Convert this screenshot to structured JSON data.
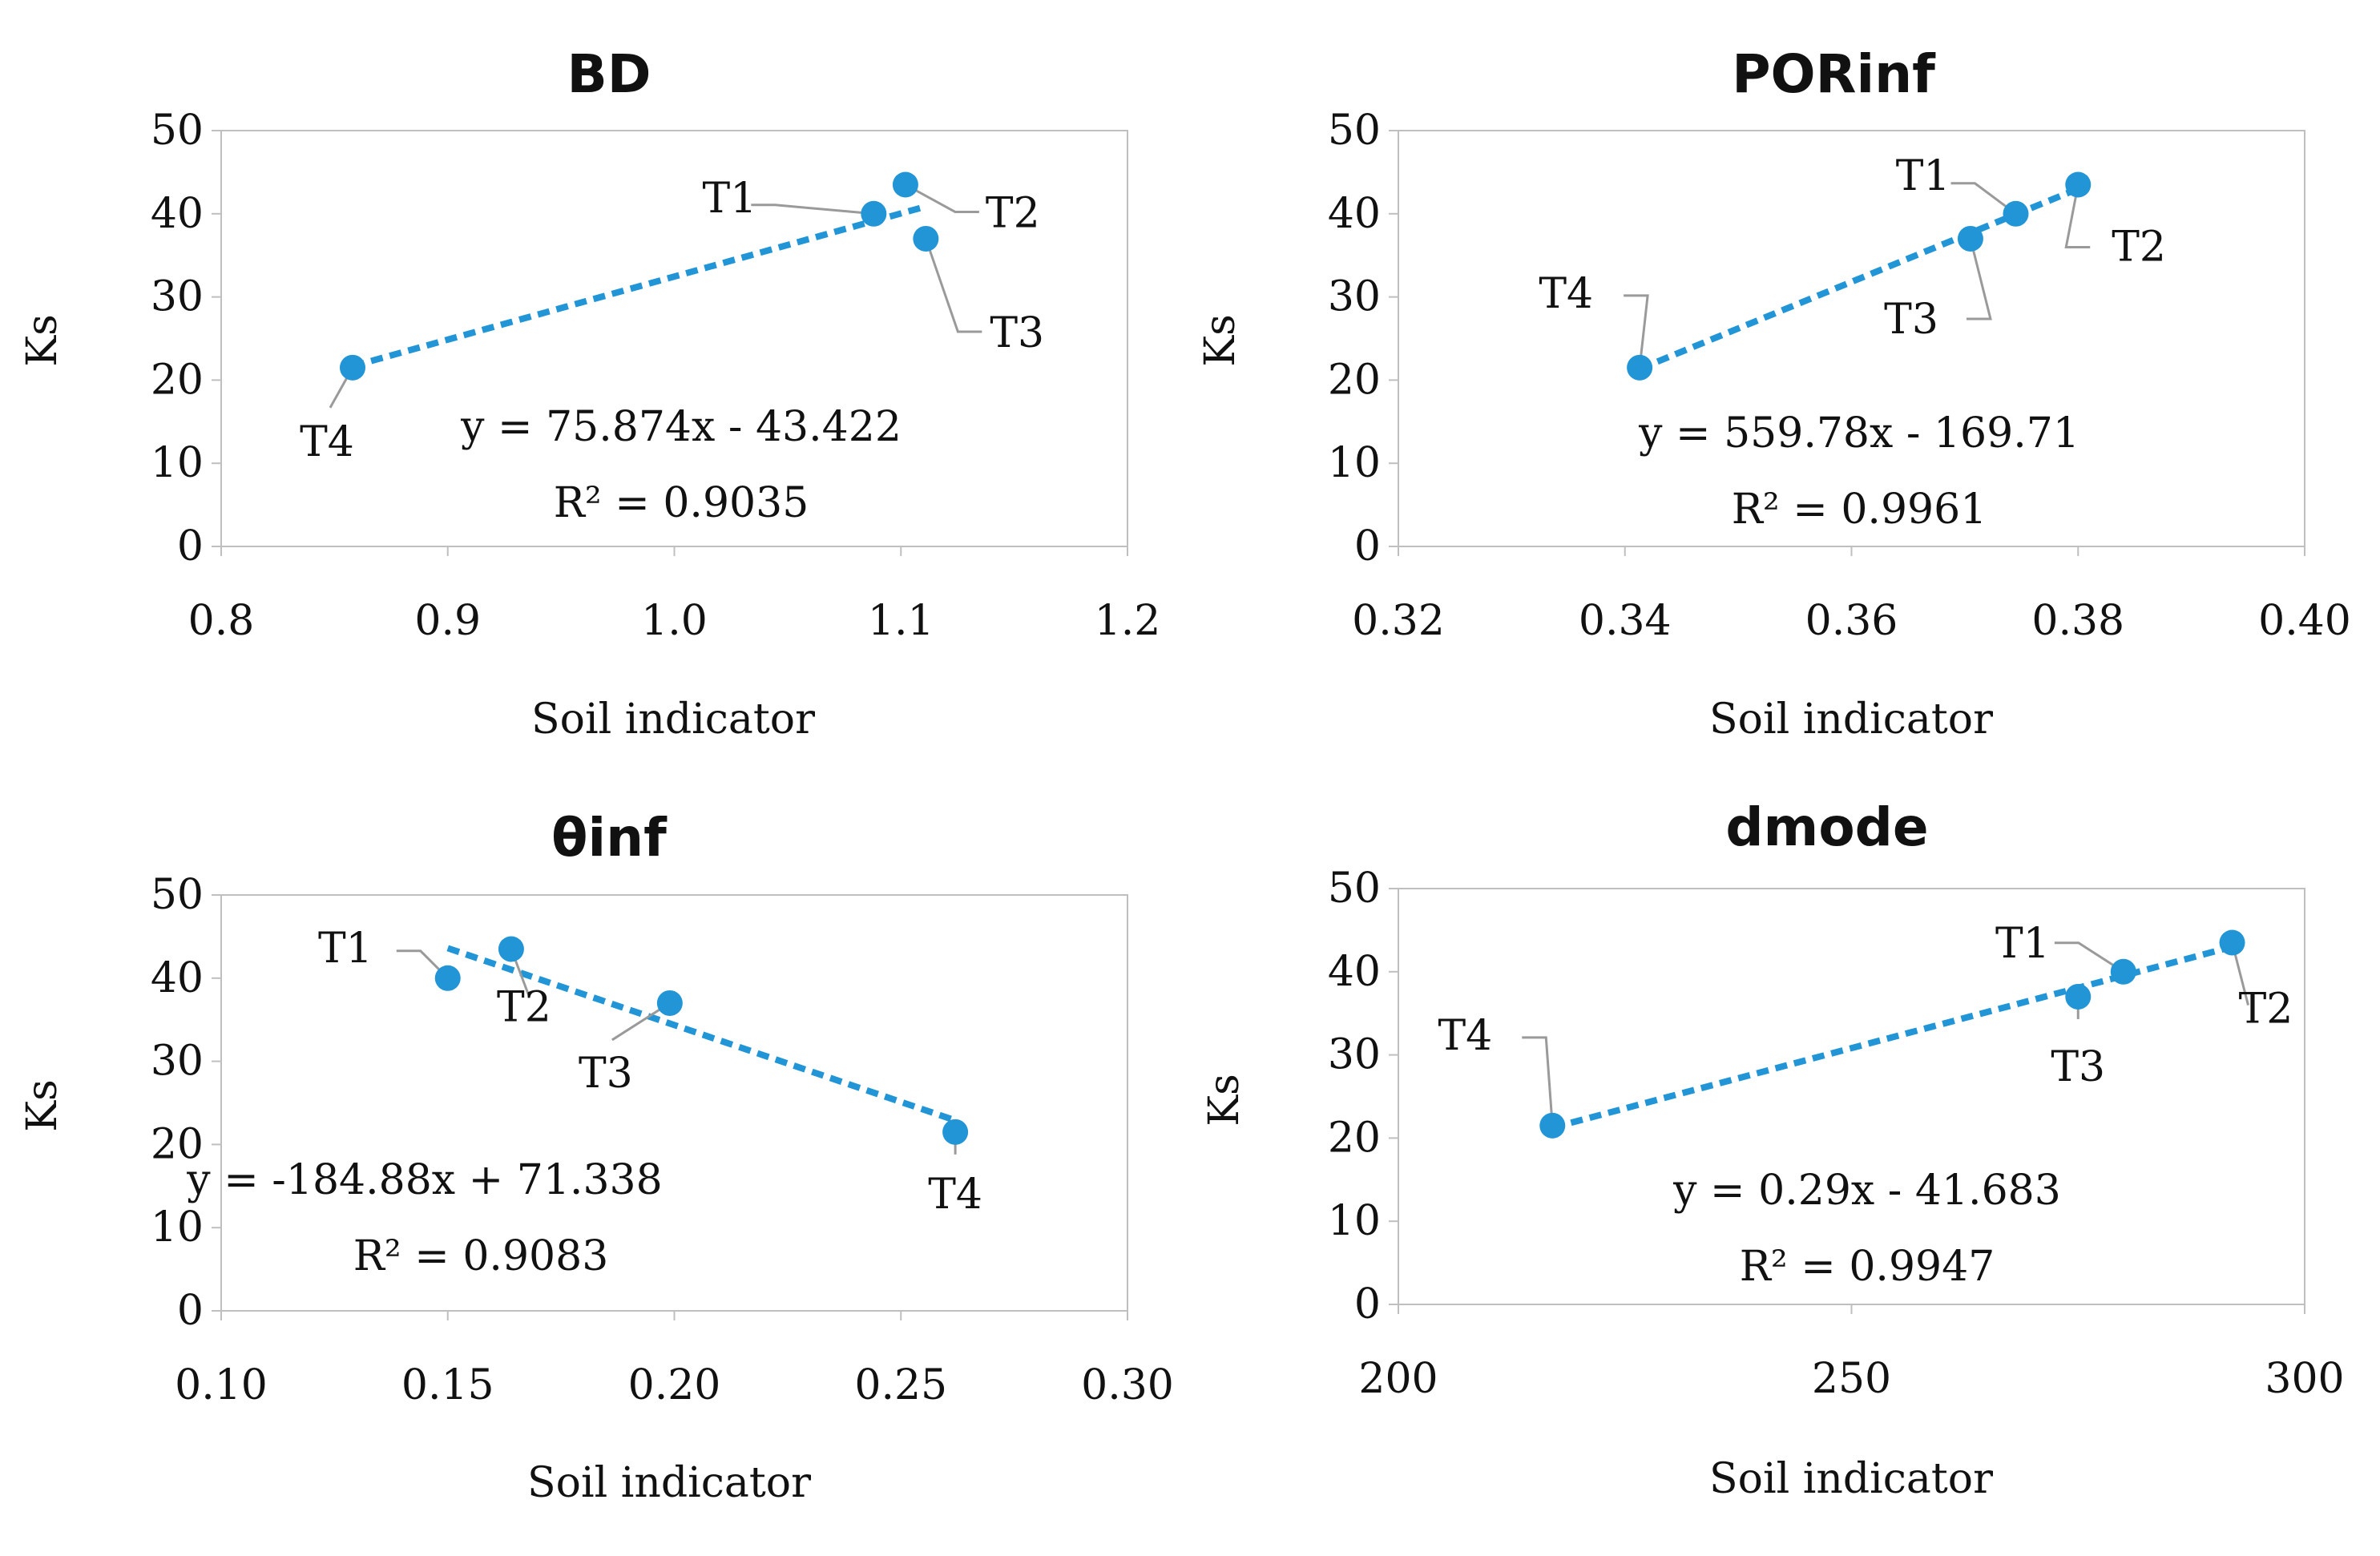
{
  "chart_data": [
    {
      "type": "scatter",
      "title": "BD",
      "xlabel": "Soil indicator",
      "ylabel": "Ks",
      "xlim": [
        0.8,
        1.2
      ],
      "ylim": [
        0,
        50
      ],
      "xticks": [
        "0.8",
        "0.9",
        "1.0",
        "1.1",
        "1.2"
      ],
      "yticks": [
        "0",
        "10",
        "20",
        "30",
        "40",
        "50"
      ],
      "points": [
        {
          "label": "T1",
          "x": 1.088,
          "y": 40.0
        },
        {
          "label": "T2",
          "x": 1.102,
          "y": 43.5
        },
        {
          "label": "T3",
          "x": 1.111,
          "y": 37.0
        },
        {
          "label": "T4",
          "x": 0.858,
          "y": 21.5
        }
      ],
      "trendline": {
        "slope": 75.874,
        "intercept": -43.422,
        "x_range": [
          0.858,
          1.111
        ]
      },
      "equation": "y = 75.874x - 43.422",
      "r_squared": "R² = 0.9035"
    },
    {
      "type": "scatter",
      "title": "PORinf",
      "xlabel": "Soil indicator",
      "ylabel": "Ks",
      "xlim": [
        0.32,
        0.4
      ],
      "ylim": [
        0,
        50
      ],
      "xticks": [
        "0.32",
        "0.34",
        "0.36",
        "0.38",
        "0.40"
      ],
      "yticks": [
        "0",
        "10",
        "20",
        "30",
        "40",
        "50"
      ],
      "points": [
        {
          "label": "T1",
          "x": 0.3745,
          "y": 40.0
        },
        {
          "label": "T2",
          "x": 0.38,
          "y": 43.5
        },
        {
          "label": "T3",
          "x": 0.3705,
          "y": 37.0
        },
        {
          "label": "T4",
          "x": 0.3413,
          "y": 21.5
        }
      ],
      "trendline": {
        "slope": 559.78,
        "intercept": -169.71,
        "x_range": [
          0.3413,
          0.38
        ]
      },
      "equation": "y = 559.78x - 169.71",
      "r_squared": "R² = 0.9961"
    },
    {
      "type": "scatter",
      "title": "θinf",
      "xlabel": "Soil indicator",
      "ylabel": "Ks",
      "xlim": [
        0.1,
        0.3
      ],
      "ylim": [
        0,
        50
      ],
      "xticks": [
        "0.10",
        "0.15",
        "0.20",
        "0.25",
        "0.30"
      ],
      "yticks": [
        "0",
        "10",
        "20",
        "30",
        "40",
        "50"
      ],
      "points": [
        {
          "label": "T1",
          "x": 0.15,
          "y": 40.0
        },
        {
          "label": "T2",
          "x": 0.164,
          "y": 43.5
        },
        {
          "label": "T3",
          "x": 0.199,
          "y": 37.0
        },
        {
          "label": "T4",
          "x": 0.262,
          "y": 21.5
        }
      ],
      "trendline": {
        "slope": -184.88,
        "intercept": 71.338,
        "x_range": [
          0.15,
          0.262
        ]
      },
      "equation": "y = -184.88x + 71.338",
      "r_squared": "R² = 0.9083"
    },
    {
      "type": "scatter",
      "title": "dmode",
      "xlabel": "Soil indicator",
      "ylabel": "Ks",
      "xlim": [
        200,
        300
      ],
      "ylim": [
        0,
        50
      ],
      "xticks": [
        "200",
        "250",
        "300"
      ],
      "yticks": [
        "0",
        "10",
        "20",
        "30",
        "40",
        "50"
      ],
      "points": [
        {
          "label": "T1",
          "x": 280,
          "y": 40.0
        },
        {
          "label": "T2",
          "x": 292,
          "y": 43.5
        },
        {
          "label": "T3",
          "x": 275,
          "y": 37.0
        },
        {
          "label": "T4",
          "x": 217,
          "y": 21.5
        }
      ],
      "trendline": {
        "slope": 0.29,
        "intercept": -41.683,
        "x_range": [
          217,
          292
        ]
      },
      "equation": "y = 0.29x - 41.683",
      "r_squared": "R² = 0.9947"
    }
  ],
  "colors": {
    "marker": "#2295d6",
    "trendline": "#2295d6",
    "frame": "#bfbfbf",
    "leader": "#9a9a9a",
    "text": "#111111"
  }
}
